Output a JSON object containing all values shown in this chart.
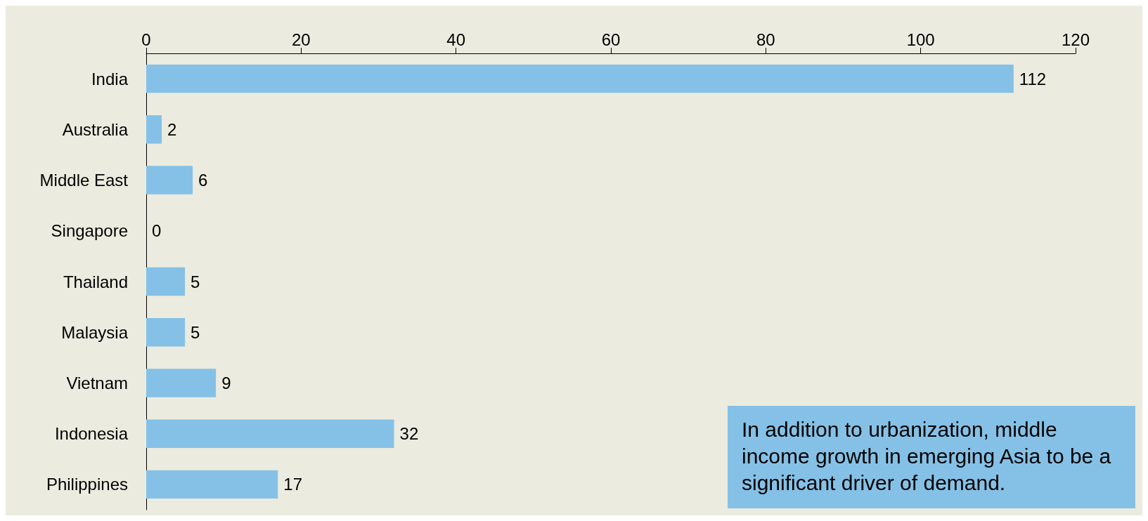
{
  "chart_data": {
    "type": "bar",
    "orientation": "horizontal",
    "categories": [
      "India",
      "Australia",
      "Middle East",
      "Singapore",
      "Thailand",
      "Malaysia",
      "Vietnam",
      "Indonesia",
      "Philippines"
    ],
    "values": [
      112,
      2,
      6,
      0,
      5,
      5,
      9,
      32,
      17
    ],
    "color": "#85c1e6",
    "xlim": [
      0,
      120
    ],
    "xticks": [
      0,
      20,
      40,
      60,
      80,
      100,
      120
    ],
    "grid": false,
    "data_labels": true,
    "annotations": [
      "In addition to urbanization, middle income growth in emerging Asia to be a significant driver of demand."
    ]
  }
}
